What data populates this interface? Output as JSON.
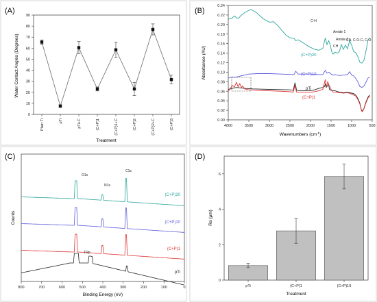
{
  "panels": {
    "a": "(A)",
    "b": "(B)",
    "c": "(C)",
    "d": "(D)"
  },
  "chart_data": [
    {
      "panel": "(A)",
      "type": "line",
      "xlabel": "Treatment",
      "ylabel": "Water Contact Angles (Degrees)",
      "ylim": [
        0,
        90
      ],
      "yticks": [
        0,
        10,
        20,
        30,
        40,
        50,
        60,
        70,
        80,
        90
      ],
      "categories": [
        "Plain Ti",
        "pTi",
        "pTi+C",
        "(C+P)1",
        "(C+P)1+C",
        "(C+P)2",
        "(C+P)2+C",
        "(C+P)3"
      ],
      "values": [
        65.5,
        7.5,
        60.5,
        23,
        58.5,
        23,
        77,
        31.5
      ],
      "errors": [
        2,
        1.2,
        5.5,
        1.8,
        7,
        6,
        5,
        4
      ],
      "colors": {
        "line": "#7a7a7a",
        "marker": "#111111"
      }
    },
    {
      "panel": "(B)",
      "type": "line",
      "xlabel": "Wavenumbers (cm",
      "xlabel_sup": "-1",
      "xlabel_end": ")",
      "ylabel": "Absorbance (AU)",
      "xlim": [
        4000,
        500
      ],
      "xticks": [
        4000,
        3500,
        3000,
        2500,
        2000,
        1500,
        1000,
        500
      ],
      "ylim": [
        0,
        0.24
      ],
      "yticks": [
        0,
        0.02,
        0.04,
        0.06,
        0.08,
        0.1,
        0.12,
        0.14,
        0.16,
        0.18,
        0.2,
        0.22,
        0.24
      ],
      "series": [
        {
          "name": "(C+P)20",
          "color": "#2aa59b",
          "points": [
            [
              4000,
              0.211
            ],
            [
              3900,
              0.214
            ],
            [
              3850,
              0.218
            ],
            [
              3800,
              0.214
            ],
            [
              3750,
              0.213
            ],
            [
              3700,
              0.218
            ],
            [
              3600,
              0.225
            ],
            [
              3450,
              0.232
            ],
            [
              3300,
              0.224
            ],
            [
              3150,
              0.212
            ],
            [
              3000,
              0.205
            ],
            [
              2900,
              0.206
            ],
            [
              2800,
              0.198
            ],
            [
              2700,
              0.188
            ],
            [
              2600,
              0.178
            ],
            [
              2500,
              0.172
            ],
            [
              2400,
              0.171
            ],
            [
              2360,
              0.166
            ],
            [
              2300,
              0.168
            ],
            [
              2200,
              0.163
            ],
            [
              2100,
              0.157
            ],
            [
              2000,
              0.152
            ],
            [
              1900,
              0.148
            ],
            [
              1800,
              0.146
            ],
            [
              1700,
              0.15
            ],
            [
              1660,
              0.165
            ],
            [
              1640,
              0.172
            ],
            [
              1600,
              0.158
            ],
            [
              1560,
              0.166
            ],
            [
              1530,
              0.16
            ],
            [
              1480,
              0.142
            ],
            [
              1450,
              0.138
            ],
            [
              1400,
              0.142
            ],
            [
              1350,
              0.14
            ],
            [
              1300,
              0.143
            ],
            [
              1250,
              0.158
            ],
            [
              1200,
              0.148
            ],
            [
              1150,
              0.157
            ],
            [
              1100,
              0.149
            ],
            [
              1050,
              0.166
            ],
            [
              1000,
              0.157
            ],
            [
              950,
              0.143
            ],
            [
              900,
              0.141
            ],
            [
              850,
              0.133
            ],
            [
              800,
              0.121
            ],
            [
              750,
              0.119
            ],
            [
              700,
              0.125
            ],
            [
              650,
              0.145
            ],
            [
              600,
              0.168
            ],
            [
              560,
              0.172
            ]
          ]
        },
        {
          "name": "(C+P)10",
          "color": "#5b5bdc",
          "points": [
            [
              4000,
              0.088
            ],
            [
              3900,
              0.09
            ],
            [
              3800,
              0.09
            ],
            [
              3700,
              0.092
            ],
            [
              3600,
              0.094
            ],
            [
              3500,
              0.096
            ],
            [
              3300,
              0.097
            ],
            [
              3000,
              0.097
            ],
            [
              2700,
              0.096
            ],
            [
              2400,
              0.095
            ],
            [
              2360,
              0.102
            ],
            [
              2300,
              0.096
            ],
            [
              2000,
              0.096
            ],
            [
              1800,
              0.095
            ],
            [
              1700,
              0.095
            ],
            [
              1660,
              0.101
            ],
            [
              1640,
              0.104
            ],
            [
              1600,
              0.098
            ],
            [
              1550,
              0.1
            ],
            [
              1500,
              0.096
            ],
            [
              1450,
              0.094
            ],
            [
              1400,
              0.095
            ],
            [
              1300,
              0.093
            ],
            [
              1200,
              0.094
            ],
            [
              1100,
              0.095
            ],
            [
              1050,
              0.101
            ],
            [
              1000,
              0.094
            ],
            [
              950,
              0.092
            ],
            [
              900,
              0.087
            ],
            [
              850,
              0.08
            ],
            [
              800,
              0.07
            ],
            [
              750,
              0.068
            ],
            [
              700,
              0.071
            ],
            [
              650,
              0.079
            ],
            [
              600,
              0.088
            ],
            [
              560,
              0.09
            ]
          ]
        },
        {
          "name": "pTi",
          "color": "#222222",
          "points": [
            [
              4000,
              0.064
            ],
            [
              3950,
              0.065
            ],
            [
              3900,
              0.066
            ],
            [
              3800,
              0.068
            ],
            [
              3700,
              0.067
            ],
            [
              3600,
              0.066
            ],
            [
              3400,
              0.065
            ],
            [
              3000,
              0.064
            ],
            [
              2500,
              0.063
            ],
            [
              2420,
              0.062
            ],
            [
              2380,
              0.077
            ],
            [
              2360,
              0.072
            ],
            [
              2340,
              0.062
            ],
            [
              2200,
              0.061
            ],
            [
              2000,
              0.061
            ],
            [
              1900,
              0.063
            ],
            [
              1800,
              0.066
            ],
            [
              1700,
              0.068
            ],
            [
              1660,
              0.07
            ],
            [
              1640,
              0.075
            ],
            [
              1620,
              0.068
            ],
            [
              1600,
              0.07
            ],
            [
              1560,
              0.075
            ],
            [
              1540,
              0.064
            ],
            [
              1500,
              0.062
            ],
            [
              1400,
              0.061
            ],
            [
              1300,
              0.058
            ],
            [
              1200,
              0.057
            ],
            [
              1100,
              0.058
            ],
            [
              1000,
              0.056
            ],
            [
              950,
              0.055
            ],
            [
              900,
              0.052
            ],
            [
              850,
              0.045
            ],
            [
              800,
              0.035
            ],
            [
              760,
              0.02
            ],
            [
              740,
              0.018
            ],
            [
              700,
              0.024
            ],
            [
              650,
              0.038
            ],
            [
              600,
              0.048
            ],
            [
              560,
              0.052
            ]
          ]
        },
        {
          "name": "(C+P)1",
          "color": "#e03030",
          "points": [
            [
              4000,
              0.06
            ],
            [
              3950,
              0.066
            ],
            [
              3900,
              0.072
            ],
            [
              3850,
              0.069
            ],
            [
              3800,
              0.079
            ],
            [
              3760,
              0.069
            ],
            [
              3720,
              0.076
            ],
            [
              3680,
              0.068
            ],
            [
              3650,
              0.071
            ],
            [
              3600,
              0.065
            ],
            [
              3500,
              0.063
            ],
            [
              3300,
              0.062
            ],
            [
              3000,
              0.061
            ],
            [
              2700,
              0.06
            ],
            [
              2500,
              0.059
            ],
            [
              2420,
              0.058
            ],
            [
              2380,
              0.072
            ],
            [
              2360,
              0.065
            ],
            [
              2340,
              0.058
            ],
            [
              2200,
              0.058
            ],
            [
              2000,
              0.058
            ],
            [
              1900,
              0.059
            ],
            [
              1800,
              0.061
            ],
            [
              1700,
              0.064
            ],
            [
              1680,
              0.072
            ],
            [
              1660,
              0.078
            ],
            [
              1640,
              0.085
            ],
            [
              1620,
              0.07
            ],
            [
              1600,
              0.074
            ],
            [
              1580,
              0.08
            ],
            [
              1560,
              0.073
            ],
            [
              1540,
              0.072
            ],
            [
              1500,
              0.064
            ],
            [
              1450,
              0.058
            ],
            [
              1400,
              0.058
            ],
            [
              1300,
              0.057
            ],
            [
              1200,
              0.056
            ],
            [
              1100,
              0.057
            ],
            [
              1000,
              0.054
            ],
            [
              950,
              0.052
            ],
            [
              900,
              0.05
            ],
            [
              850,
              0.043
            ],
            [
              800,
              0.033
            ],
            [
              760,
              0.019
            ],
            [
              740,
              0.017
            ],
            [
              700,
              0.023
            ],
            [
              650,
              0.036
            ],
            [
              600,
              0.046
            ],
            [
              560,
              0.05
            ]
          ]
        }
      ],
      "annotations": [
        "C-H",
        "Amide 1",
        "Amide 2",
        "CH",
        "CN, C-O-C, C-O"
      ]
    },
    {
      "panel": "(C)",
      "type": "line",
      "xlabel": "Binding Energy (eV)",
      "ylabel": "Counts",
      "xlim": [
        800,
        0
      ],
      "xticks": [
        800,
        700,
        600,
        500,
        400,
        300,
        200,
        100,
        0
      ],
      "peak_labels": [
        "O1s",
        "N1s",
        "C1s",
        "Ti2p"
      ],
      "series": [
        {
          "name": "(C+P)20",
          "color": "#2aa59b",
          "offset": 3
        },
        {
          "name": "(C+P)10",
          "color": "#5b5bdc",
          "offset": 2
        },
        {
          "name": "(C+P)1",
          "color": "#e03030",
          "offset": 1
        },
        {
          "name": "pTi",
          "color": "#222222",
          "offset": 0
        }
      ]
    },
    {
      "panel": "(D)",
      "type": "bar",
      "xlabel": "Treatment",
      "ylabel": "Ra (μm)",
      "ylim": [
        0,
        7
      ],
      "yticks": [
        0,
        2,
        4,
        6
      ],
      "categories": [
        "pTi",
        "(C+P)1",
        "(C+P)10"
      ],
      "values": [
        0.82,
        2.78,
        5.85
      ],
      "errors": [
        0.12,
        0.7,
        0.7
      ],
      "colors": {
        "bar": "#c0c0c0",
        "edge": "#555555"
      }
    }
  ]
}
